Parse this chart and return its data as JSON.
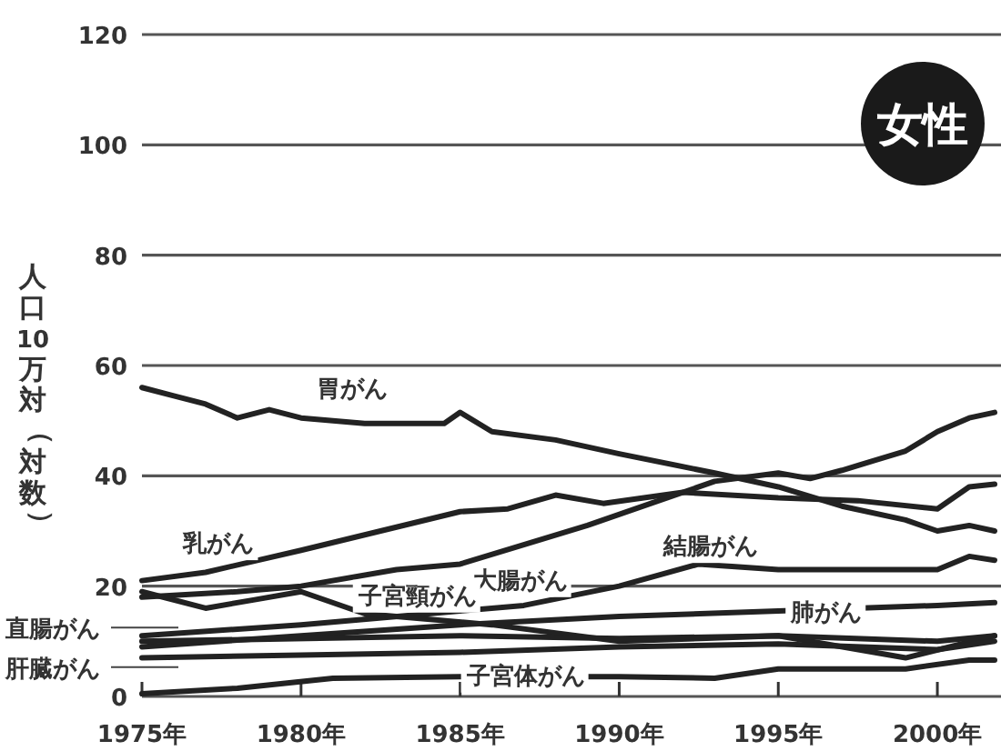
{
  "chart_data": {
    "type": "line",
    "title": "女性",
    "ylabel": "人口10万対（対数）",
    "xlim": [
      1975,
      2002
    ],
    "ylim": [
      0,
      120
    ],
    "yticks": [
      0,
      20,
      40,
      60,
      80,
      100,
      120
    ],
    "xticks": [
      {
        "value": 1975,
        "label": "1975年"
      },
      {
        "value": 1980,
        "label": "1980年"
      },
      {
        "value": 1985,
        "label": "1985年"
      },
      {
        "value": 1990,
        "label": "1990年"
      },
      {
        "value": 1995,
        "label": "1995年"
      },
      {
        "value": 2000,
        "label": "2000年"
      }
    ],
    "grid": "y",
    "line_style": "solid",
    "series": [
      {
        "name": "胃がん",
        "color": "#222222",
        "x": [
          1975,
          1976,
          1977,
          1978,
          1979,
          1980,
          1982,
          1984.5,
          1985,
          1986,
          1988,
          1990,
          1993,
          1995,
          1997,
          1999,
          2000,
          2001,
          2001.8
        ],
        "values": [
          56,
          54.5,
          53,
          50.5,
          52,
          50.5,
          49.5,
          49.5,
          51.5,
          48,
          46.5,
          44,
          40.5,
          38,
          34.5,
          32,
          30,
          31,
          30
        ]
      },
      {
        "name": "乳がん",
        "color": "#222222",
        "x": [
          1975,
          1977,
          1980,
          1982.5,
          1985,
          1986.5,
          1988,
          1989.5,
          1992,
          1995,
          1997.5,
          2000,
          2001,
          2001.8
        ],
        "values": [
          21,
          22.5,
          26.5,
          30,
          33.5,
          34,
          36.5,
          35,
          37,
          36,
          35.5,
          34,
          38,
          38.5
        ]
      },
      {
        "name": "大腸がん",
        "color": "#222222",
        "x": [
          1975,
          1978,
          1980,
          1983,
          1985,
          1987,
          1989,
          1991,
          1993,
          1995,
          1996,
          1997,
          1999,
          2000,
          2001,
          2001.8
        ],
        "values": [
          18,
          19,
          20,
          23,
          24,
          27.5,
          31,
          35,
          39,
          40.5,
          39.5,
          41,
          44.5,
          48,
          50.5,
          51.5
        ]
      },
      {
        "name": "結腸がん",
        "color": "#222222",
        "x": [
          1975,
          1980,
          1985,
          1987,
          1990,
          1992.5,
          1995,
          2000,
          2001,
          2001.8
        ],
        "values": [
          11,
          13,
          15.5,
          16.5,
          20,
          24,
          23,
          23,
          25.4,
          24.7
        ]
      },
      {
        "name": "子宮頸がん",
        "color": "#222222",
        "x": [
          1975,
          1977,
          1978.5,
          1980,
          1982,
          1986,
          1990,
          1995,
          1999,
          2001.8
        ],
        "values": [
          19,
          16,
          17.5,
          19,
          15,
          13,
          10,
          11,
          7,
          11
        ]
      },
      {
        "name": "肺がん",
        "color": "#222222",
        "x": [
          1975,
          1980,
          1985,
          1990,
          1995,
          2000,
          2001.8
        ],
        "values": [
          9,
          11,
          13,
          14.5,
          15.5,
          16.5,
          17
        ]
      },
      {
        "name": "直腸がん",
        "color": "#222222",
        "x": [
          1975,
          1985,
          1990,
          1995,
          2000,
          2001.8
        ],
        "values": [
          10,
          11,
          10.5,
          11,
          10,
          11
        ]
      },
      {
        "name": "肝臓がん",
        "color": "#222222",
        "x": [
          1975,
          1980,
          1985,
          1990,
          1995,
          2000,
          2001.8
        ],
        "values": [
          7,
          7.5,
          8,
          9,
          9.5,
          8.5,
          10
        ]
      },
      {
        "name": "子宮体がん",
        "color": "#222222",
        "x": [
          1975,
          1978,
          1981,
          1985,
          1990,
          1993,
          1995,
          1999,
          2001,
          2001.8
        ],
        "values": [
          0.5,
          1.5,
          3.3,
          3.6,
          3.6,
          3.3,
          5,
          5,
          6.6,
          6.6
        ]
      }
    ]
  }
}
